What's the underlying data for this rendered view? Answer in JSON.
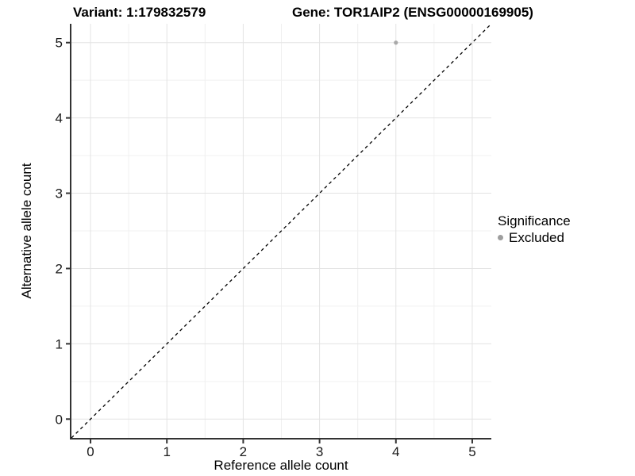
{
  "chart_data": {
    "type": "scatter",
    "titles": [
      "Variant: 1:179832579",
      "Gene: TOR1AIP2 (ENSG00000169905)"
    ],
    "xlabel": "Reference allele count",
    "ylabel": "Alternative allele count",
    "xlim": [
      -0.25,
      5.25
    ],
    "ylim": [
      -0.25,
      5.25
    ],
    "xticks": [
      0,
      1,
      2,
      3,
      4,
      5
    ],
    "yticks": [
      0,
      1,
      2,
      3,
      4,
      5
    ],
    "minor_gridlines_at": [
      0.5,
      1.5,
      2.5,
      3.5,
      4.5
    ],
    "grid": "major+minor",
    "series": [
      {
        "name": "Excluded",
        "color": "#a9a9a9",
        "points": [
          {
            "x": 4,
            "y": 5
          }
        ]
      }
    ],
    "reference_line": {
      "type": "identity",
      "equation": "y = x",
      "style": "dashed",
      "color": "#000000"
    },
    "legend": {
      "title": "Significance",
      "position": "right",
      "items": [
        {
          "label": "Excluded",
          "color": "#9e9e9e",
          "marker": "circle"
        }
      ]
    },
    "colors": {
      "panel_background": "#ffffff",
      "grid_major": "#e3e3e3",
      "grid_minor": "#f0f0f0",
      "axis_line": "#333333",
      "tick_label": "#1a1a1a"
    }
  }
}
